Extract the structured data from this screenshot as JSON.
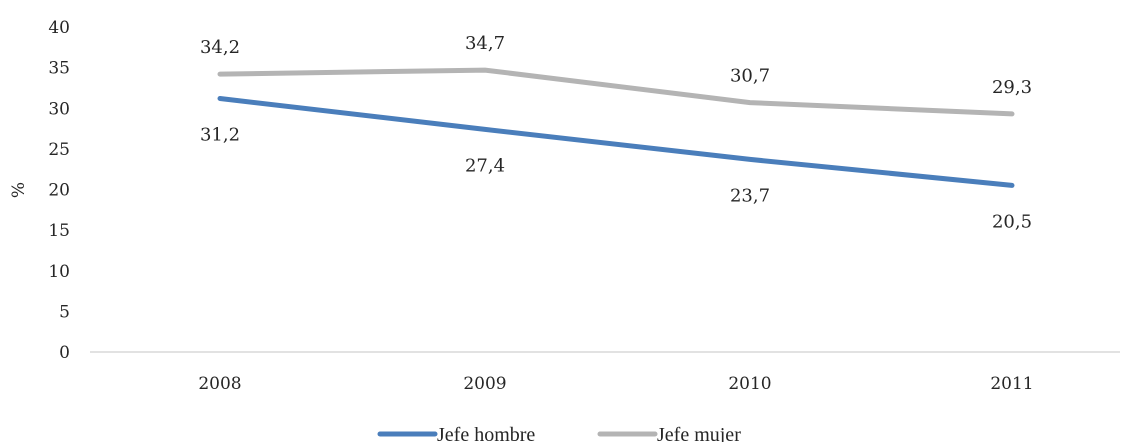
{
  "chart_data": {
    "type": "line",
    "categories": [
      "2008",
      "2009",
      "2010",
      "2011"
    ],
    "series": [
      {
        "name": "Jefe hombre",
        "values": [
          31.2,
          27.4,
          23.7,
          20.5
        ],
        "labels": [
          "31,2",
          "27,4",
          "23,7",
          "20,5"
        ],
        "color": "#4a7ebb",
        "label_position": "below"
      },
      {
        "name": "Jefe mujer",
        "values": [
          34.2,
          34.7,
          30.7,
          29.3
        ],
        "labels": [
          "34,2",
          "34,7",
          "30,7",
          "29,3"
        ],
        "color": "#b4b4b4",
        "label_position": "above"
      }
    ],
    "title": "",
    "xlabel": "",
    "ylabel": "%",
    "ylim": [
      0,
      40
    ],
    "yticks": [
      0,
      5,
      10,
      15,
      20,
      25,
      30,
      35,
      40
    ],
    "grid": false,
    "axis_color": "#d9d9d9",
    "legend": "bottom-center"
  }
}
